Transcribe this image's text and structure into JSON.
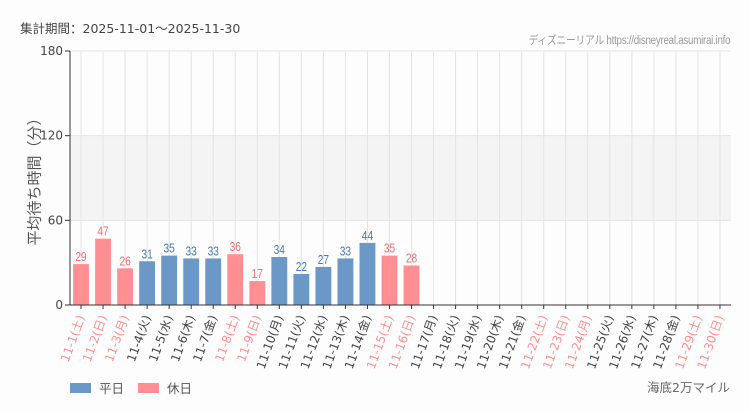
{
  "header": {
    "period": "集計期間：2025-11-01〜2025-11-30",
    "source": "ディズニーリアル https://disneyreal.asumirai.info"
  },
  "footer": {
    "credit": "海底2万マイル"
  },
  "colors": {
    "weekday": "#6b98c7",
    "holiday": "#ff8f93",
    "weekday_label": "#4a79aa",
    "holiday_label": "#f06d74",
    "weekday_tick": "#444444",
    "holiday_tick": "#ff8f93",
    "band": "#f3f4f3",
    "grid": "#e4e4e4",
    "axis": "#333333"
  },
  "legend": {
    "items": [
      {
        "label": "平日",
        "color": "#6b98c7"
      },
      {
        "label": "休日",
        "color": "#ff8f93"
      }
    ]
  },
  "chart_data": {
    "type": "bar",
    "title": "",
    "xlabel": "",
    "ylabel": "平均待ち時間（分）",
    "ylim": [
      0,
      180
    ],
    "yticks": [
      0,
      60,
      120,
      180
    ],
    "grid": true,
    "shaded_band": [
      60,
      120
    ],
    "legend_position": "bottom-left",
    "categories": [
      "11-1(土)",
      "11-2(日)",
      "11-3(月)",
      "11-4(火)",
      "11-5(水)",
      "11-6(木)",
      "11-7(金)",
      "11-8(土)",
      "11-9(日)",
      "11-10(月)",
      "11-11(火)",
      "11-12(水)",
      "11-13(木)",
      "11-14(金)",
      "11-15(土)",
      "11-16(日)",
      "11-17(月)",
      "11-18(火)",
      "11-19(水)",
      "11-20(木)",
      "11-21(金)",
      "11-22(土)",
      "11-23(日)",
      "11-24(月)",
      "11-25(火)",
      "11-26(水)",
      "11-27(木)",
      "11-28(金)",
      "11-29(土)",
      "11-30(日)"
    ],
    "day_type": [
      "休日",
      "休日",
      "休日",
      "平日",
      "平日",
      "平日",
      "平日",
      "休日",
      "休日",
      "平日",
      "平日",
      "平日",
      "平日",
      "平日",
      "休日",
      "休日",
      "平日",
      "平日",
      "平日",
      "平日",
      "平日",
      "休日",
      "休日",
      "休日",
      "平日",
      "平日",
      "平日",
      "平日",
      "休日",
      "休日"
    ],
    "values": [
      29,
      47,
      26,
      31,
      35,
      33,
      33,
      36,
      17,
      34,
      22,
      27,
      33,
      44,
      35,
      28,
      null,
      null,
      null,
      null,
      null,
      null,
      null,
      null,
      null,
      null,
      null,
      null,
      null,
      null
    ],
    "series": [
      {
        "name": "平日",
        "values": [
          null,
          null,
          null,
          31,
          35,
          33,
          33,
          null,
          null,
          34,
          22,
          27,
          33,
          44,
          null,
          null,
          null,
          null,
          null,
          null,
          null,
          null,
          null,
          null,
          null,
          null,
          null,
          null,
          null,
          null
        ]
      },
      {
        "name": "休日",
        "values": [
          29,
          47,
          26,
          null,
          null,
          null,
          null,
          36,
          17,
          null,
          null,
          null,
          null,
          null,
          35,
          28,
          null,
          null,
          null,
          null,
          null,
          null,
          null,
          null,
          null,
          null,
          null,
          null,
          null,
          null
        ]
      }
    ]
  }
}
